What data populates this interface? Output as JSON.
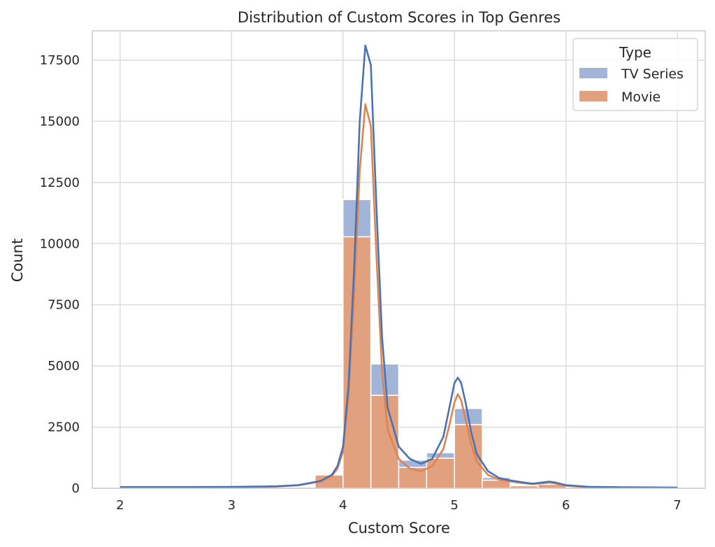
{
  "chart_data": {
    "type": "bar",
    "title": "Distribution of Custom Scores in Top Genres",
    "xlabel": "Custom Score",
    "ylabel": "Count",
    "xlim": [
      1.75,
      7.25
    ],
    "ylim": [
      0,
      18700
    ],
    "xticks": [
      2,
      3,
      4,
      5,
      6,
      7
    ],
    "yticks": [
      0,
      2500,
      5000,
      7500,
      10000,
      12500,
      15000,
      17500
    ],
    "grid": true,
    "stacked": true,
    "bin_width": 0.25,
    "legend": {
      "title": "Type",
      "position": "top-right"
    },
    "series": [
      {
        "name": "Movie",
        "color": "#e1a07e",
        "bins": [
          {
            "x0": 3.75,
            "value": 540
          },
          {
            "x0": 4.0,
            "value": 10280
          },
          {
            "x0": 4.25,
            "value": 3800
          },
          {
            "x0": 4.5,
            "value": 850
          },
          {
            "x0": 4.75,
            "value": 1230
          },
          {
            "x0": 5.0,
            "value": 2600
          },
          {
            "x0": 5.25,
            "value": 330
          },
          {
            "x0": 5.5,
            "value": 100
          },
          {
            "x0": 5.75,
            "value": 160
          }
        ],
        "kde_color": "#dd8452",
        "kde": [
          [
            2.0,
            40
          ],
          [
            2.5,
            40
          ],
          [
            3.0,
            45
          ],
          [
            3.4,
            70
          ],
          [
            3.6,
            120
          ],
          [
            3.8,
            280
          ],
          [
            3.9,
            500
          ],
          [
            3.95,
            800
          ],
          [
            4.0,
            1500
          ],
          [
            4.05,
            3800
          ],
          [
            4.1,
            8000
          ],
          [
            4.15,
            13000
          ],
          [
            4.2,
            15700
          ],
          [
            4.25,
            14800
          ],
          [
            4.3,
            9500
          ],
          [
            4.35,
            4800
          ],
          [
            4.4,
            2400
          ],
          [
            4.5,
            1200
          ],
          [
            4.6,
            800
          ],
          [
            4.7,
            700
          ],
          [
            4.8,
            900
          ],
          [
            4.9,
            1600
          ],
          [
            4.95,
            2500
          ],
          [
            5.0,
            3500
          ],
          [
            5.03,
            3850
          ],
          [
            5.06,
            3600
          ],
          [
            5.1,
            2800
          ],
          [
            5.15,
            1800
          ],
          [
            5.2,
            1100
          ],
          [
            5.3,
            550
          ],
          [
            5.4,
            350
          ],
          [
            5.5,
            280
          ],
          [
            5.6,
            220
          ],
          [
            5.7,
            170
          ],
          [
            5.8,
            210
          ],
          [
            5.85,
            230
          ],
          [
            5.9,
            200
          ],
          [
            6.0,
            100
          ],
          [
            6.2,
            40
          ],
          [
            6.5,
            30
          ],
          [
            7.0,
            20
          ]
        ]
      },
      {
        "name": "TV Series",
        "color": "#a3b4d9",
        "bins": [
          {
            "x0": 3.75,
            "value": 0
          },
          {
            "x0": 4.0,
            "value": 1520
          },
          {
            "x0": 4.25,
            "value": 1280
          },
          {
            "x0": 4.5,
            "value": 300
          },
          {
            "x0": 4.75,
            "value": 220
          },
          {
            "x0": 5.0,
            "value": 660
          },
          {
            "x0": 5.25,
            "value": 110
          },
          {
            "x0": 5.5,
            "value": 0
          },
          {
            "x0": 5.75,
            "value": 0
          }
        ],
        "kde_color": "#4c72b0",
        "kde": [
          [
            2.0,
            50
          ],
          [
            2.5,
            50
          ],
          [
            3.0,
            55
          ],
          [
            3.4,
            80
          ],
          [
            3.6,
            130
          ],
          [
            3.8,
            300
          ],
          [
            3.9,
            550
          ],
          [
            3.95,
            900
          ],
          [
            4.0,
            1700
          ],
          [
            4.05,
            4200
          ],
          [
            4.1,
            9000
          ],
          [
            4.15,
            15000
          ],
          [
            4.2,
            18100
          ],
          [
            4.25,
            17300
          ],
          [
            4.3,
            11500
          ],
          [
            4.35,
            6200
          ],
          [
            4.4,
            3300
          ],
          [
            4.5,
            1700
          ],
          [
            4.6,
            1200
          ],
          [
            4.7,
            1000
          ],
          [
            4.8,
            1200
          ],
          [
            4.9,
            2100
          ],
          [
            4.95,
            3200
          ],
          [
            5.0,
            4300
          ],
          [
            5.03,
            4520
          ],
          [
            5.06,
            4300
          ],
          [
            5.1,
            3500
          ],
          [
            5.15,
            2300
          ],
          [
            5.2,
            1400
          ],
          [
            5.3,
            700
          ],
          [
            5.4,
            420
          ],
          [
            5.5,
            320
          ],
          [
            5.6,
            250
          ],
          [
            5.7,
            190
          ],
          [
            5.8,
            240
          ],
          [
            5.85,
            270
          ],
          [
            5.9,
            240
          ],
          [
            6.0,
            130
          ],
          [
            6.2,
            60
          ],
          [
            6.5,
            40
          ],
          [
            7.0,
            30
          ]
        ]
      }
    ]
  }
}
